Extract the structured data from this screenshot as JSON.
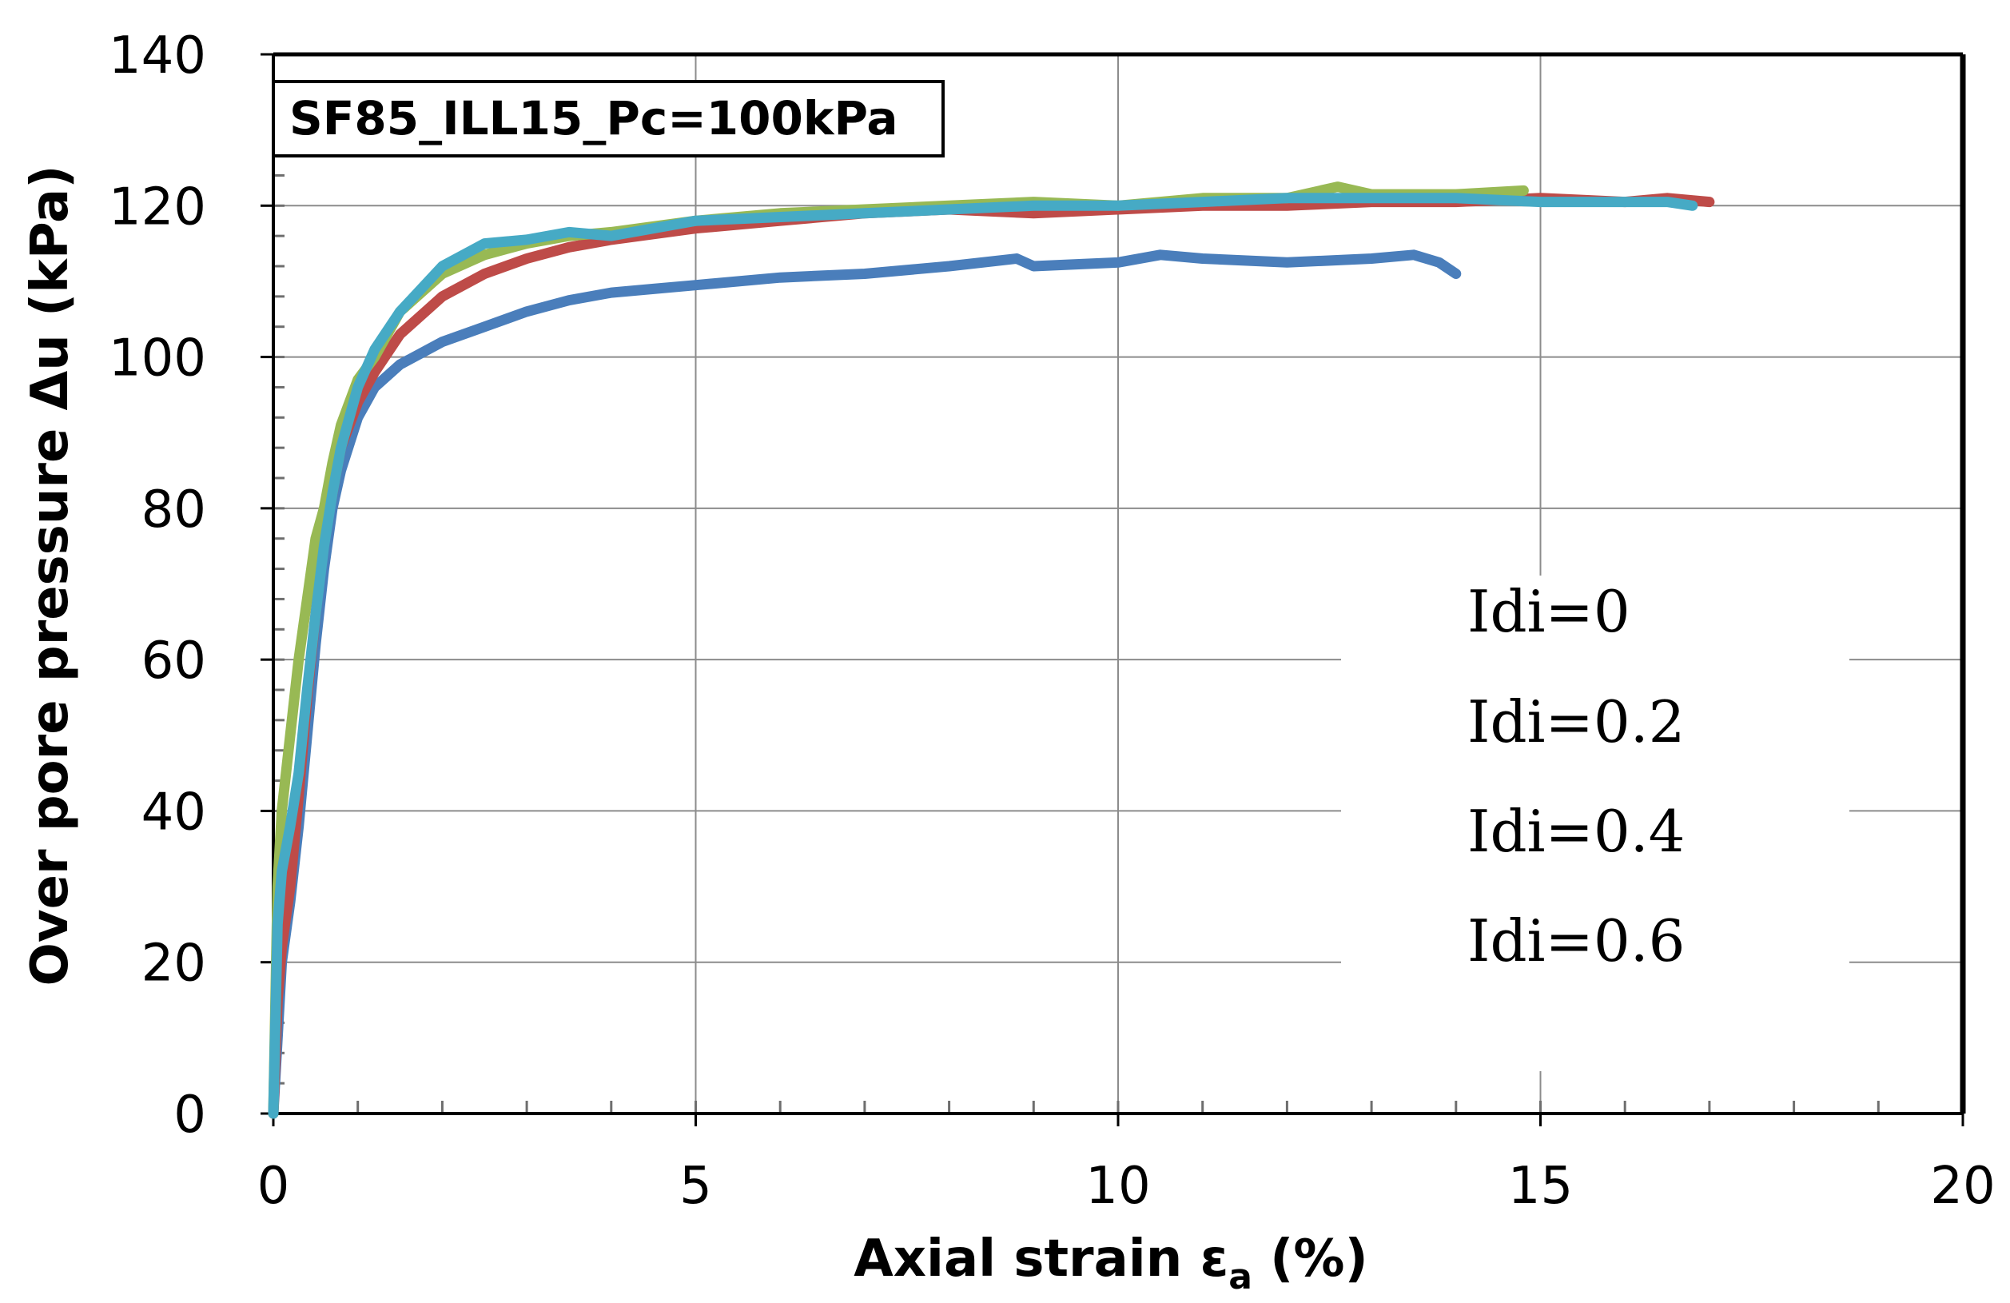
{
  "chart_data": {
    "type": "line",
    "title": "SF85_ILL15_Pc=100kPa",
    "xlabel_main": "Axial strain ε",
    "xlabel_sub": "a",
    "xlabel_unit": " (%)",
    "ylabel": "Over pore pressure Δu (kPa)",
    "xlim": [
      0,
      20
    ],
    "ylim": [
      0,
      140
    ],
    "xticks": [
      0,
      5,
      10,
      15,
      20
    ],
    "yticks": [
      0,
      20,
      40,
      60,
      80,
      100,
      120,
      140
    ],
    "grid": true,
    "legend_position": "right",
    "series": [
      {
        "name": "Idi=0",
        "color": "#4a7ebb",
        "x": [
          0,
          0.05,
          0.1,
          0.2,
          0.3,
          0.4,
          0.5,
          0.6,
          0.7,
          0.8,
          1.0,
          1.2,
          1.5,
          2.0,
          2.5,
          3.0,
          3.5,
          4.0,
          4.5,
          5.0,
          6.0,
          7.0,
          8.0,
          8.8,
          9.0,
          10.0,
          10.5,
          11.0,
          12.0,
          13.0,
          13.5,
          13.8,
          14.0
        ],
        "values": [
          0,
          10,
          20,
          28,
          38,
          50,
          62,
          72,
          80,
          85,
          92,
          96,
          99,
          102,
          104,
          106,
          107.5,
          108.5,
          109,
          109.5,
          110.5,
          111,
          112,
          113,
          112,
          112.5,
          113.5,
          113,
          112.5,
          113,
          113.5,
          112.5,
          111
        ]
      },
      {
        "name": "Idi=0.2",
        "color": "#be4b48",
        "x": [
          0,
          0.05,
          0.1,
          0.2,
          0.3,
          0.4,
          0.5,
          0.6,
          0.7,
          0.8,
          1.0,
          1.2,
          1.5,
          2.0,
          2.5,
          3.0,
          3.5,
          4.0,
          5.0,
          6.0,
          7.0,
          8.0,
          9.0,
          10.0,
          11.0,
          12.0,
          13.0,
          14.0,
          15.0,
          16.0,
          16.5,
          17.0
        ],
        "values": [
          0,
          15,
          22,
          30,
          42,
          55,
          66,
          76,
          82,
          88,
          94,
          98,
          103,
          108,
          111,
          113,
          114.5,
          115.5,
          117,
          118,
          119,
          119.5,
          119,
          119.5,
          120,
          120,
          120.5,
          120.5,
          121,
          120.5,
          121,
          120.5
        ]
      },
      {
        "name": "Idi=0.4",
        "color": "#98b954",
        "x": [
          0,
          0.05,
          0.1,
          0.2,
          0.3,
          0.4,
          0.5,
          0.6,
          0.7,
          0.8,
          1.0,
          1.2,
          1.5,
          2.0,
          2.5,
          3.0,
          3.5,
          4.0,
          5.0,
          6.0,
          7.0,
          8.0,
          9.0,
          10.0,
          11.0,
          12.0,
          12.6,
          13.0,
          14.0,
          14.8
        ],
        "values": [
          0,
          30,
          40,
          50,
          60,
          68,
          76,
          80,
          86,
          91,
          97,
          100,
          106,
          111,
          113.5,
          115,
          116,
          116.5,
          118,
          119,
          119.5,
          120,
          120.5,
          120,
          121,
          121,
          122.5,
          121.5,
          121.5,
          122
        ]
      },
      {
        "name": "Idi=0.6",
        "color": "#46aac5",
        "x": [
          0,
          0.05,
          0.1,
          0.2,
          0.3,
          0.4,
          0.5,
          0.6,
          0.7,
          0.8,
          1.0,
          1.2,
          1.5,
          2.0,
          2.5,
          3.0,
          3.5,
          4.0,
          5.0,
          6.0,
          7.0,
          8.0,
          9.0,
          10.0,
          11.0,
          12.0,
          13.0,
          14.0,
          15.0,
          16.0,
          16.5,
          16.8
        ],
        "values": [
          0,
          25,
          32,
          38,
          45,
          56,
          66,
          75,
          82,
          88,
          96,
          101,
          106,
          112,
          115,
          115.5,
          116.5,
          116,
          118,
          118.5,
          119,
          119.5,
          120,
          120,
          120.5,
          121,
          121,
          121,
          120.5,
          120.5,
          120.5,
          120
        ]
      }
    ]
  }
}
